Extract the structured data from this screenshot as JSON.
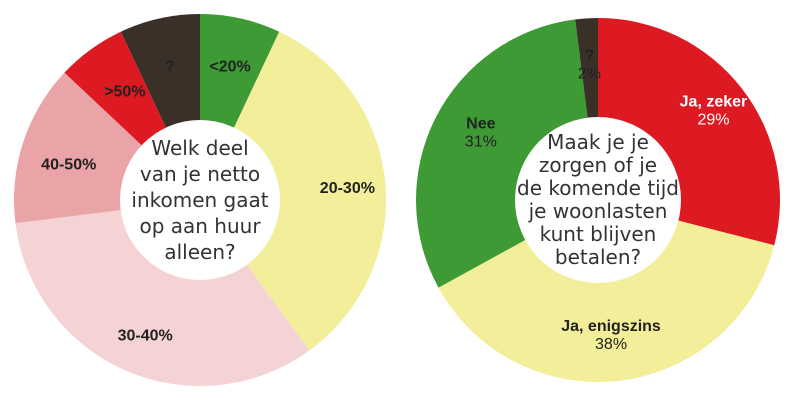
{
  "chart_data": [
    {
      "type": "pie",
      "title": "Welk deel van je netto inkomen gaat op aan huur alleen?",
      "title_lines": [
        "Welk deel",
        "van je netto",
        "inkomen gaat",
        "op aan huur",
        "alleen?"
      ],
      "categories": [
        "<20%",
        "20-30%",
        "30-40%",
        "40-50%",
        ">50%",
        "?"
      ],
      "values": [
        7,
        33,
        33,
        14,
        6,
        7
      ],
      "colors": [
        "#3d9a35",
        "#f2ee9a",
        "#f5d3d4",
        "#eaa3a6",
        "#dd1a22",
        "#3a3028"
      ],
      "label_colors": [
        "#ffffff",
        "#222222",
        "#222222",
        "#222222",
        "#ffffff",
        "#ffffff"
      ],
      "value_labels": false,
      "start_angle_deg": 0,
      "legend": "none"
    },
    {
      "type": "pie",
      "title": "Maak je je zorgen of je de komende tijd je woonlasten kunt blijven betalen?",
      "title_lines": [
        "Maak je je",
        "zorgen of je",
        "de komende tijd",
        "je woonlasten",
        "kunt blijven",
        "betalen?"
      ],
      "categories": [
        "Ja, zeker",
        "Ja, enigszins",
        "Nee",
        "?"
      ],
      "values": [
        29,
        38,
        31,
        2
      ],
      "value_text": [
        "29%",
        "38%",
        "31%",
        "2%"
      ],
      "colors": [
        "#dd1a22",
        "#f2ee9a",
        "#3d9a35",
        "#3a3028"
      ],
      "label_colors": [
        "#ffffff",
        "#222222",
        "#222222",
        "#222222"
      ],
      "value_labels": true,
      "start_angle_deg": 0,
      "legend": "none"
    }
  ]
}
